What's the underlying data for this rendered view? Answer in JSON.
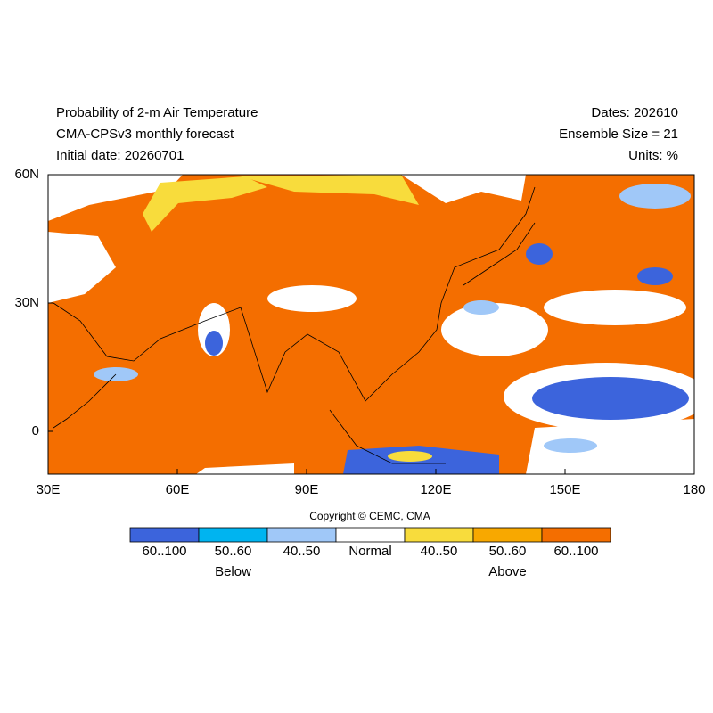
{
  "header": {
    "left": [
      "Probability of 2-m Air Temperature",
      "CMA-CPSv3 monthly forecast",
      "Initial date: 20260701"
    ],
    "right": [
      "Dates: 202610",
      "Ensemble Size = 21",
      "Units: %"
    ]
  },
  "map": {
    "xlim": [
      30,
      180
    ],
    "ylim": [
      -10,
      60
    ],
    "xticks": [
      {
        "value": 30,
        "label": "30E"
      },
      {
        "value": 60,
        "label": "60E"
      },
      {
        "value": 90,
        "label": "90E"
      },
      {
        "value": 120,
        "label": "120E"
      },
      {
        "value": 150,
        "label": "150E"
      },
      {
        "value": 180,
        "label": "180"
      }
    ],
    "yticks": [
      {
        "value": 0,
        "label": "0"
      },
      {
        "value": 30,
        "label": "30N"
      },
      {
        "value": 60,
        "label": "60N"
      }
    ]
  },
  "copyright": "Copyright © CEMC, CMA",
  "legend": {
    "labels": [
      "60..100",
      "50..60",
      "40..50",
      "Normal",
      "40..50",
      "50..60",
      "60..100"
    ],
    "colors": [
      "#3c64dc",
      "#00b4f0",
      "#a0c8f8",
      "#ffffff",
      "#f8dc3c",
      "#f8a800",
      "#f46e00"
    ],
    "below": "Below",
    "above": "Above"
  }
}
